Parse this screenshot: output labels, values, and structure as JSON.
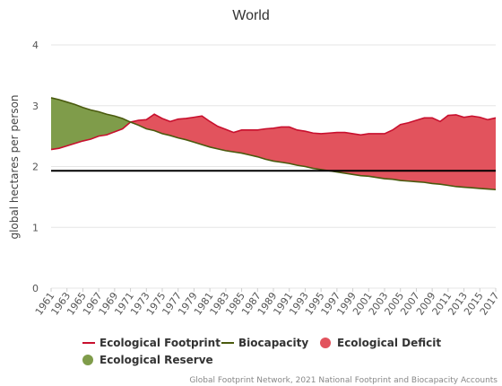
{
  "chart_data": {
    "type": "area",
    "title": "World",
    "ylabel": "global hectares per person",
    "xlabel": "",
    "ylim": [
      0,
      4
    ],
    "yticks": [
      0,
      1,
      2,
      3,
      4
    ],
    "x": [
      1961,
      1962,
      1963,
      1964,
      1965,
      1966,
      1967,
      1968,
      1969,
      1970,
      1971,
      1972,
      1973,
      1974,
      1975,
      1976,
      1977,
      1978,
      1979,
      1980,
      1981,
      1982,
      1983,
      1984,
      1985,
      1986,
      1987,
      1988,
      1989,
      1990,
      1991,
      1992,
      1993,
      1994,
      1995,
      1996,
      1997,
      1998,
      1999,
      2000,
      2001,
      2002,
      2003,
      2004,
      2005,
      2006,
      2007,
      2008,
      2009,
      2010,
      2011,
      2012,
      2013,
      2014,
      2015,
      2016,
      2017
    ],
    "xtick_labels": [
      "1961",
      "1963",
      "1965",
      "1967",
      "1969",
      "1971",
      "1973",
      "1975",
      "1977",
      "1979",
      "1981",
      "1983",
      "1985",
      "1987",
      "1989",
      "1991",
      "1993",
      "1995",
      "1997",
      "1999",
      "2001",
      "2003",
      "2005",
      "2007",
      "2009",
      "2011",
      "2013",
      "2015",
      "2017"
    ],
    "series": [
      {
        "name": "Ecological Footprint",
        "color": "#c8102e",
        "values": [
          2.28,
          2.3,
          2.34,
          2.38,
          2.42,
          2.45,
          2.5,
          2.52,
          2.57,
          2.62,
          2.73,
          2.76,
          2.77,
          2.86,
          2.79,
          2.74,
          2.78,
          2.79,
          2.81,
          2.83,
          2.74,
          2.66,
          2.61,
          2.56,
          2.6,
          2.6,
          2.6,
          2.62,
          2.63,
          2.65,
          2.65,
          2.6,
          2.58,
          2.55,
          2.54,
          2.55,
          2.56,
          2.56,
          2.54,
          2.52,
          2.54,
          2.54,
          2.54,
          2.6,
          2.69,
          2.72,
          2.76,
          2.8,
          2.8,
          2.74,
          2.84,
          2.85,
          2.81,
          2.83,
          2.81,
          2.77,
          2.8
        ]
      },
      {
        "name": "Biocapacity",
        "color": "#4a5a0e",
        "values": [
          3.13,
          3.1,
          3.06,
          3.02,
          2.97,
          2.93,
          2.9,
          2.86,
          2.83,
          2.79,
          2.73,
          2.68,
          2.62,
          2.59,
          2.54,
          2.51,
          2.47,
          2.44,
          2.4,
          2.36,
          2.32,
          2.29,
          2.26,
          2.24,
          2.22,
          2.19,
          2.16,
          2.12,
          2.09,
          2.07,
          2.05,
          2.02,
          2.0,
          1.97,
          1.95,
          1.93,
          1.91,
          1.89,
          1.87,
          1.85,
          1.84,
          1.82,
          1.8,
          1.79,
          1.77,
          1.76,
          1.75,
          1.74,
          1.72,
          1.71,
          1.69,
          1.67,
          1.66,
          1.65,
          1.64,
          1.63,
          1.62
        ]
      }
    ],
    "reference_line": {
      "value": 1.93,
      "color": "#000000"
    },
    "fills": {
      "deficit": {
        "name": "Ecological Deficit",
        "color": "#e2535d"
      },
      "reserve": {
        "name": "Ecological Reserve",
        "color": "#7f9c4a"
      }
    },
    "legend": {
      "position": "bottom-left",
      "items": [
        {
          "label": "Ecological Footprint",
          "kind": "line",
          "color": "#c8102e"
        },
        {
          "label": "Biocapacity",
          "kind": "line",
          "color": "#4a5a0e"
        },
        {
          "label": "Ecological Deficit",
          "kind": "dot",
          "color": "#e2535d"
        },
        {
          "label": "Ecological Reserve",
          "kind": "dot",
          "color": "#7f9c4a"
        }
      ]
    },
    "credit": "Global Footprint Network, 2021 National Footprint and Biocapacity Accounts",
    "grid": true
  }
}
